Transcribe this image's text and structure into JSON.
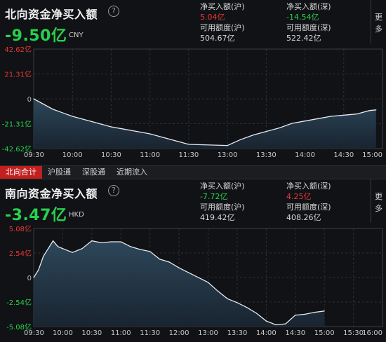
{
  "north": {
    "title": "北向资金净买入额",
    "help_icon": "?",
    "value": "-9.50亿",
    "currency": "CNY",
    "net_buy_sh_label": "净买入额(沪)",
    "net_buy_sh": "5.04亿",
    "net_buy_sz_label": "净买入额(深)",
    "net_buy_sz": "-14.54亿",
    "avail_sh_label": "可用额度(沪)",
    "avail_sh": "504.67亿",
    "avail_sz_label": "可用额度(深)",
    "avail_sz": "522.42亿",
    "more": [
      "更",
      "多"
    ]
  },
  "tabs": [
    "北向合计",
    "沪股通",
    "深股通",
    "近期流入"
  ],
  "south": {
    "title": "南向资金净买入额",
    "help_icon": "?",
    "value": "-3.47亿",
    "currency": "HKD",
    "net_buy_sh_label": "净买入额(沪)",
    "net_buy_sh": "-7.72亿",
    "net_buy_sz_label": "净买入额(深)",
    "net_buy_sz": "4.25亿",
    "avail_sh_label": "可用额度(沪)",
    "avail_sh": "419.42亿",
    "avail_sz_label": "可用额度(深)",
    "avail_sz": "408.26亿",
    "more": [
      "更",
      "多"
    ]
  },
  "colors": {
    "up": "#e83838",
    "down": "#28d04c",
    "line": "#e8eaee",
    "fill": "#2e4a5e",
    "active_tab": "#c21f1f"
  },
  "chart_data": [
    {
      "type": "area",
      "yticks": [
        "42.62亿",
        "21.31亿",
        "0",
        "-21.31亿",
        "-42.62亿"
      ],
      "ylim": [
        -42.62,
        42.62
      ],
      "xticks": [
        "09:30",
        "10:00",
        "10:30",
        "11:00",
        "11:30",
        "13:00",
        "13:30",
        "14:00",
        "14:30",
        "15:00"
      ],
      "x": [
        "09:30",
        "09:35",
        "09:40",
        "09:45",
        "09:50",
        "09:55",
        "10:00",
        "10:10",
        "10:20",
        "10:30",
        "10:40",
        "10:50",
        "11:00",
        "11:10",
        "11:20",
        "11:30",
        "13:00",
        "13:10",
        "13:20",
        "13:30",
        "13:40",
        "13:50",
        "14:00",
        "14:10",
        "14:20",
        "14:30",
        "14:40",
        "14:50",
        "14:55"
      ],
      "values": [
        0,
        -3,
        -6,
        -9,
        -11,
        -13,
        -15,
        -18,
        -21,
        -24,
        -26,
        -28,
        -30,
        -33,
        -36,
        -39,
        -40,
        -35,
        -31,
        -28,
        -25,
        -21,
        -19,
        -17,
        -15,
        -14,
        -13,
        -10,
        -9.5
      ]
    },
    {
      "type": "area",
      "yticks": [
        "5.08亿",
        "2.54亿",
        "0",
        "-2.54亿",
        "-5.08亿"
      ],
      "ylim": [
        -5.08,
        5.08
      ],
      "xticks": [
        "09:30",
        "10:00",
        "10:30",
        "11:00",
        "11:30",
        "12:00",
        "13:00",
        "13:30",
        "14:00",
        "14:30",
        "15:00",
        "15:30",
        "16:00"
      ],
      "x": [
        "09:30",
        "09:35",
        "09:40",
        "09:45",
        "09:50",
        "09:55",
        "10:00",
        "10:10",
        "10:20",
        "10:30",
        "10:40",
        "10:50",
        "11:00",
        "11:10",
        "11:20",
        "11:30",
        "11:40",
        "11:50",
        "12:00",
        "13:00",
        "13:10",
        "13:20",
        "13:30",
        "13:40",
        "13:50",
        "14:00",
        "14:10",
        "14:20",
        "14:30",
        "14:40",
        "14:50",
        "15:00"
      ],
      "values": [
        0,
        0.8,
        2.2,
        3.0,
        3.8,
        3.2,
        3.0,
        2.6,
        3.0,
        3.8,
        3.6,
        3.7,
        3.7,
        3.2,
        2.9,
        2.7,
        1.9,
        1.6,
        1.0,
        -0.5,
        -1.4,
        -2.2,
        -2.6,
        -3.1,
        -3.7,
        -4.5,
        -4.9,
        -4.8,
        -3.9,
        -3.8,
        -3.6,
        -3.47
      ]
    }
  ]
}
